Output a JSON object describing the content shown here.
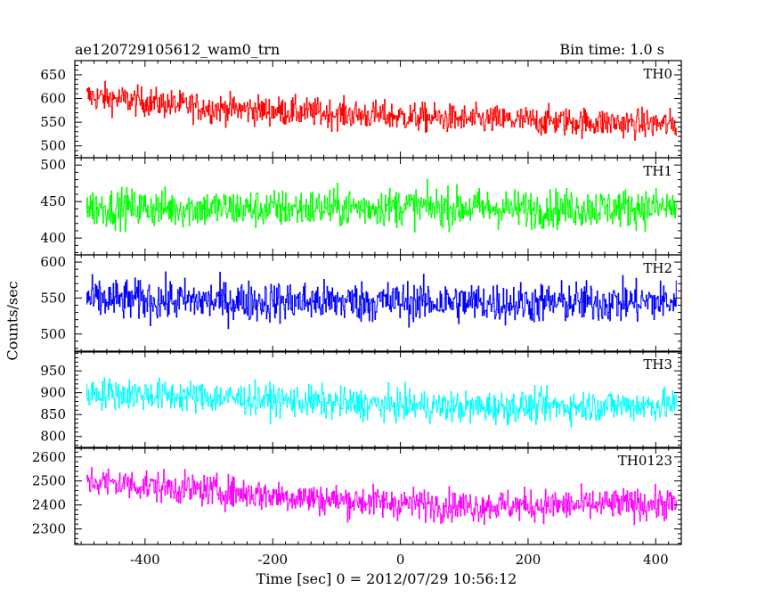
{
  "header": {
    "title": "ae120729105612_wam0_trn",
    "bin_time": "Bin time: 1.0 s"
  },
  "chart_data": {
    "type": "line",
    "title": "ae120729105612_wam0_trn",
    "subtitle": "Bin time: 1.0 s",
    "xlabel": "Time [sec] 0 = 2012/07/29 10:56:12",
    "ylabel": "Counts/sec",
    "xlim": [
      -510,
      440
    ],
    "x_ticks": [
      -400,
      -200,
      0,
      200,
      400
    ],
    "x_start": -492,
    "x_end": 432,
    "grid": false,
    "legend": "none",
    "panels": [
      {
        "name": "TH0",
        "color": "#ff0000",
        "ylim": [
          475,
          680
        ],
        "yticks": [
          500,
          550,
          600,
          650
        ],
        "trend": [
          [
            -492,
            605
          ],
          [
            -300,
            580
          ],
          [
            -100,
            568
          ],
          [
            100,
            556
          ],
          [
            300,
            550
          ],
          [
            432,
            545
          ]
        ],
        "noise": 28
      },
      {
        "name": "TH1",
        "color": "#00ff00",
        "ylim": [
          377,
          510
        ],
        "yticks": [
          400,
          450,
          500
        ],
        "trend": [
          [
            -492,
            442
          ],
          [
            -200,
            440
          ],
          [
            0,
            443
          ],
          [
            200,
            440
          ],
          [
            432,
            442
          ]
        ],
        "noise": 24
      },
      {
        "name": "TH2",
        "color": "#0000ff",
        "ylim": [
          475,
          610
        ],
        "yticks": [
          500,
          550,
          600
        ],
        "trend": [
          [
            -492,
            548
          ],
          [
            -200,
            545
          ],
          [
            0,
            545
          ],
          [
            200,
            543
          ],
          [
            432,
            545
          ]
        ],
        "noise": 26
      },
      {
        "name": "TH3",
        "color": "#00ffff",
        "ylim": [
          773,
          995
        ],
        "yticks": [
          800,
          850,
          900,
          950
        ],
        "trend": [
          [
            -492,
            900
          ],
          [
            -300,
            890
          ],
          [
            -100,
            876
          ],
          [
            100,
            866
          ],
          [
            300,
            870
          ],
          [
            432,
            872
          ]
        ],
        "noise": 33
      },
      {
        "name": "TH0123",
        "color": "#ff00ff",
        "ylim": [
          2235,
          2640
        ],
        "yticks": [
          2300,
          2400,
          2500,
          2600
        ],
        "trend": [
          [
            -492,
            2500
          ],
          [
            -300,
            2460
          ],
          [
            -100,
            2420
          ],
          [
            100,
            2395
          ],
          [
            300,
            2400
          ],
          [
            432,
            2405
          ]
        ],
        "noise": 60
      }
    ]
  }
}
